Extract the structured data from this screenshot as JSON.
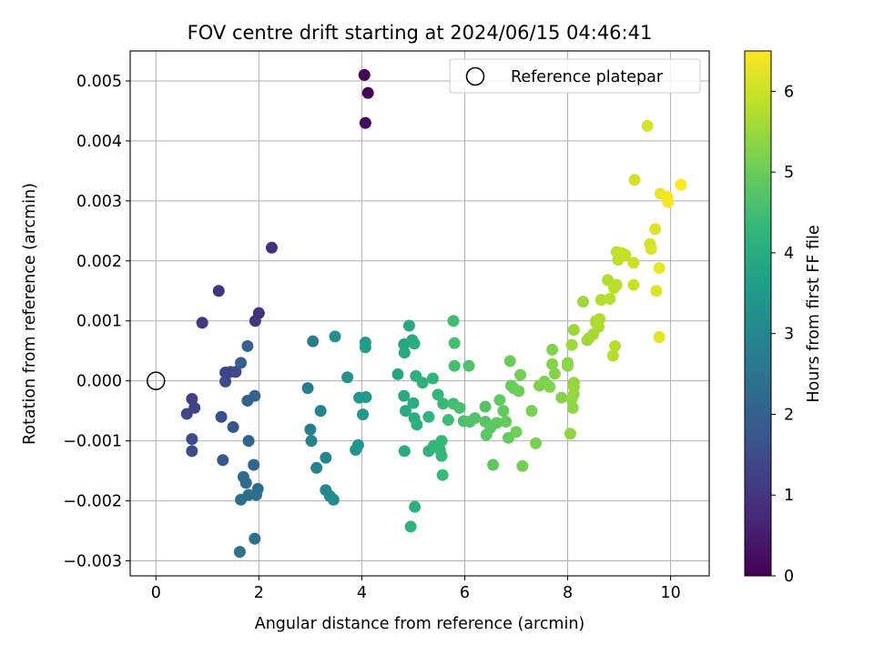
{
  "chart_data": {
    "type": "scatter",
    "title": "FOV centre drift starting at 2024/06/15 04:46:41",
    "xlabel": "Angular distance from reference (arcmin)",
    "ylabel": "Rotation from reference (arcmin)",
    "xlim": [
      -0.5,
      10.75
    ],
    "ylim": [
      -0.00325,
      0.0055
    ],
    "xticks": [
      0,
      2,
      4,
      6,
      8,
      10
    ],
    "xtick_labels": [
      "0",
      "2",
      "4",
      "6",
      "8",
      "10"
    ],
    "yticks": [
      -0.003,
      -0.002,
      -0.001,
      0.0,
      0.001,
      0.002,
      0.003,
      0.004,
      0.005
    ],
    "ytick_labels": [
      "−0.003",
      "−0.002",
      "−0.001",
      "0.000",
      "0.001",
      "0.002",
      "0.003",
      "0.004",
      "0.005"
    ],
    "grid": true,
    "legend": {
      "placement": "top-right",
      "entries": [
        {
          "label": "Reference platepar",
          "marker": "open-circle"
        }
      ]
    },
    "reference": {
      "x": 0,
      "y": 0
    },
    "colorbar": {
      "label": "Hours from first FF file",
      "min": 0,
      "max": 6.5,
      "ticks": [
        0,
        1,
        2,
        3,
        4,
        5,
        6
      ],
      "tick_labels": [
        "0",
        "1",
        "2",
        "3",
        "4",
        "5",
        "6"
      ],
      "colormap": "viridis",
      "colors": [
        "#440154",
        "#482878",
        "#3e4a89",
        "#31688e",
        "#26828e",
        "#1f9e89",
        "#35b779",
        "#6ece58",
        "#b5de2b",
        "#fde725"
      ]
    },
    "points": [
      {
        "x": 4.05,
        "y": 0.0051,
        "t": 0.05
      },
      {
        "x": 4.12,
        "y": 0.0048,
        "t": 0.1
      },
      {
        "x": 4.07,
        "y": 0.0043,
        "t": 0.15
      },
      {
        "x": 2.25,
        "y": 0.00222,
        "t": 0.8
      },
      {
        "x": 1.22,
        "y": 0.0015,
        "t": 0.95
      },
      {
        "x": 0.9,
        "y": 0.00097,
        "t": 1.05
      },
      {
        "x": 2.0,
        "y": 0.00113,
        "t": 0.9
      },
      {
        "x": 1.93,
        "y": 0.001,
        "t": 1.0
      },
      {
        "x": 0.7,
        "y": -0.0003,
        "t": 1.3
      },
      {
        "x": 0.75,
        "y": -0.00045,
        "t": 1.35
      },
      {
        "x": 0.6,
        "y": -0.00055,
        "t": 1.4
      },
      {
        "x": 0.7,
        "y": -0.00097,
        "t": 1.45
      },
      {
        "x": 0.7,
        "y": -0.00117,
        "t": 1.5
      },
      {
        "x": 1.35,
        "y": 0.00014,
        "t": 1.3
      },
      {
        "x": 1.45,
        "y": 0.00015,
        "t": 1.35
      },
      {
        "x": 1.55,
        "y": 0.00015,
        "t": 1.4
      },
      {
        "x": 1.35,
        "y": -1e-05,
        "t": 1.5
      },
      {
        "x": 1.27,
        "y": -0.0006,
        "t": 1.6
      },
      {
        "x": 1.5,
        "y": -0.00077,
        "t": 1.7
      },
      {
        "x": 1.3,
        "y": -0.00132,
        "t": 1.8
      },
      {
        "x": 1.65,
        "y": 0.0003,
        "t": 1.9
      },
      {
        "x": 1.78,
        "y": 0.00058,
        "t": 2.0
      },
      {
        "x": 1.78,
        "y": -0.00033,
        "t": 2.0
      },
      {
        "x": 1.92,
        "y": -0.00025,
        "t": 2.05
      },
      {
        "x": 1.8,
        "y": -0.001,
        "t": 2.1
      },
      {
        "x": 1.9,
        "y": -0.0014,
        "t": 2.15
      },
      {
        "x": 1.7,
        "y": -0.0016,
        "t": 2.2
      },
      {
        "x": 1.75,
        "y": -0.0017,
        "t": 2.25
      },
      {
        "x": 1.98,
        "y": -0.0018,
        "t": 2.3
      },
      {
        "x": 1.95,
        "y": -0.0019,
        "t": 2.3
      },
      {
        "x": 1.8,
        "y": -0.0019,
        "t": 2.35
      },
      {
        "x": 1.65,
        "y": -0.00198,
        "t": 2.4
      },
      {
        "x": 1.92,
        "y": -0.00263,
        "t": 2.4
      },
      {
        "x": 1.63,
        "y": -0.00285,
        "t": 2.5
      },
      {
        "x": 3.05,
        "y": 0.00066,
        "t": 2.7
      },
      {
        "x": 2.95,
        "y": -0.00012,
        "t": 2.8
      },
      {
        "x": 3.0,
        "y": -0.00081,
        "t": 2.8
      },
      {
        "x": 3.02,
        "y": -0.001,
        "t": 2.85
      },
      {
        "x": 3.12,
        "y": -0.00145,
        "t": 2.9
      },
      {
        "x": 3.2,
        "y": -0.0005,
        "t": 2.95
      },
      {
        "x": 3.3,
        "y": -0.00128,
        "t": 3.0
      },
      {
        "x": 3.3,
        "y": -0.00182,
        "t": 3.0
      },
      {
        "x": 3.38,
        "y": -0.00192,
        "t": 3.05
      },
      {
        "x": 3.45,
        "y": -0.00198,
        "t": 3.1
      },
      {
        "x": 3.48,
        "y": 0.00074,
        "t": 3.2
      },
      {
        "x": 3.72,
        "y": 6e-05,
        "t": 3.3
      },
      {
        "x": 3.88,
        "y": -0.00115,
        "t": 3.35
      },
      {
        "x": 3.93,
        "y": -0.00107,
        "t": 3.4
      },
      {
        "x": 3.95,
        "y": -0.00028,
        "t": 3.45
      },
      {
        "x": 4.02,
        "y": -0.00056,
        "t": 3.5
      },
      {
        "x": 4.08,
        "y": -0.00027,
        "t": 3.5
      },
      {
        "x": 4.07,
        "y": 0.00064,
        "t": 3.55
      },
      {
        "x": 4.07,
        "y": 0.00056,
        "t": 3.6
      },
      {
        "x": 4.7,
        "y": 0.00011,
        "t": 3.8
      },
      {
        "x": 4.82,
        "y": 0.00061,
        "t": 3.85
      },
      {
        "x": 4.92,
        "y": 0.00092,
        "t": 3.9
      },
      {
        "x": 4.83,
        "y": 0.00047,
        "t": 3.9
      },
      {
        "x": 4.98,
        "y": 0.00068,
        "t": 3.95
      },
      {
        "x": 5.02,
        "y": 0.00062,
        "t": 4.0
      },
      {
        "x": 4.82,
        "y": -0.00025,
        "t": 3.95
      },
      {
        "x": 4.85,
        "y": -0.0005,
        "t": 4.0
      },
      {
        "x": 4.83,
        "y": -0.00117,
        "t": 4.0
      },
      {
        "x": 5.0,
        "y": -0.00037,
        "t": 4.05
      },
      {
        "x": 5.02,
        "y": -0.00062,
        "t": 4.05
      },
      {
        "x": 5.07,
        "y": -0.00073,
        "t": 4.1
      },
      {
        "x": 5.03,
        "y": -0.0021,
        "t": 4.1
      },
      {
        "x": 4.95,
        "y": -0.00243,
        "t": 4.15
      },
      {
        "x": 5.05,
        "y": 8e-05,
        "t": 4.1
      },
      {
        "x": 5.18,
        "y": -3e-05,
        "t": 4.15
      },
      {
        "x": 5.3,
        "y": -0.0006,
        "t": 4.2
      },
      {
        "x": 5.3,
        "y": -0.00117,
        "t": 4.2
      },
      {
        "x": 5.4,
        "y": -0.00108,
        "t": 4.25
      },
      {
        "x": 5.38,
        "y": 4e-05,
        "t": 4.25
      },
      {
        "x": 5.48,
        "y": -0.00023,
        "t": 4.3
      },
      {
        "x": 5.52,
        "y": -0.00115,
        "t": 4.3
      },
      {
        "x": 5.55,
        "y": -0.00125,
        "t": 4.35
      },
      {
        "x": 5.55,
        "y": -0.001,
        "t": 4.35
      },
      {
        "x": 5.57,
        "y": -0.00157,
        "t": 4.4
      },
      {
        "x": 5.58,
        "y": -0.00038,
        "t": 4.4
      },
      {
        "x": 5.68,
        "y": -0.00065,
        "t": 4.45
      },
      {
        "x": 5.78,
        "y": -0.00038,
        "t": 4.5
      },
      {
        "x": 5.78,
        "y": 0.001,
        "t": 4.5
      },
      {
        "x": 5.8,
        "y": 0.00063,
        "t": 4.55
      },
      {
        "x": 5.8,
        "y": 0.00025,
        "t": 4.55
      },
      {
        "x": 5.9,
        "y": -0.00045,
        "t": 4.6
      },
      {
        "x": 5.98,
        "y": -0.00067,
        "t": 4.6
      },
      {
        "x": 6.08,
        "y": 0.00025,
        "t": 4.65
      },
      {
        "x": 6.1,
        "y": -0.00068,
        "t": 4.65
      },
      {
        "x": 6.2,
        "y": -0.00062,
        "t": 4.7
      },
      {
        "x": 6.4,
        "y": -0.00043,
        "t": 4.75
      },
      {
        "x": 6.4,
        "y": -0.00068,
        "t": 4.75
      },
      {
        "x": 6.42,
        "y": -0.0009,
        "t": 4.8
      },
      {
        "x": 6.5,
        "y": -0.00078,
        "t": 4.8
      },
      {
        "x": 6.55,
        "y": -0.0014,
        "t": 4.85
      },
      {
        "x": 6.62,
        "y": -0.0007,
        "t": 4.85
      },
      {
        "x": 6.68,
        "y": -0.00032,
        "t": 4.9
      },
      {
        "x": 6.75,
        "y": -0.0005,
        "t": 4.9
      },
      {
        "x": 6.8,
        "y": -0.00068,
        "t": 4.95
      },
      {
        "x": 6.85,
        "y": -0.00095,
        "t": 4.95
      },
      {
        "x": 6.88,
        "y": 0.00033,
        "t": 5.0
      },
      {
        "x": 6.9,
        "y": -8e-05,
        "t": 5.0
      },
      {
        "x": 6.95,
        "y": -0.00012,
        "t": 5.0
      },
      {
        "x": 7.0,
        "y": -0.00085,
        "t": 5.05
      },
      {
        "x": 7.05,
        "y": -0.00017,
        "t": 5.05
      },
      {
        "x": 7.08,
        "y": 0.0001,
        "t": 5.1
      },
      {
        "x": 7.12,
        "y": -0.00142,
        "t": 5.1
      },
      {
        "x": 7.3,
        "y": -0.0005,
        "t": 5.15
      },
      {
        "x": 7.38,
        "y": -0.00104,
        "t": 5.15
      },
      {
        "x": 7.45,
        "y": -8e-05,
        "t": 5.2
      },
      {
        "x": 7.55,
        "y": -1e-05,
        "t": 5.2
      },
      {
        "x": 7.65,
        "y": -0.0001,
        "t": 5.25
      },
      {
        "x": 7.7,
        "y": 0.00052,
        "t": 5.25
      },
      {
        "x": 7.7,
        "y": 0.00028,
        "t": 5.3
      },
      {
        "x": 7.75,
        "y": 0.00012,
        "t": 5.3
      },
      {
        "x": 7.88,
        "y": -0.00028,
        "t": 5.3
      },
      {
        "x": 8.0,
        "y": 0.00025,
        "t": 5.35
      },
      {
        "x": 8.0,
        "y": 0.0003,
        "t": 5.35
      },
      {
        "x": 8.05,
        "y": -0.00088,
        "t": 5.4
      },
      {
        "x": 8.08,
        "y": -0.0003,
        "t": 5.4
      },
      {
        "x": 8.1,
        "y": -0.00045,
        "t": 5.4
      },
      {
        "x": 8.12,
        "y": -0.00022,
        "t": 5.45
      },
      {
        "x": 8.12,
        "y": -0.0001,
        "t": 5.45
      },
      {
        "x": 8.12,
        "y": -3e-05,
        "t": 5.45
      },
      {
        "x": 8.08,
        "y": 0.0006,
        "t": 5.5
      },
      {
        "x": 8.12,
        "y": 0.00085,
        "t": 5.5
      },
      {
        "x": 8.3,
        "y": 0.00132,
        "t": 5.55
      },
      {
        "x": 8.38,
        "y": 0.00068,
        "t": 5.55
      },
      {
        "x": 8.42,
        "y": 0.00072,
        "t": 5.6
      },
      {
        "x": 8.5,
        "y": 0.00078,
        "t": 5.6
      },
      {
        "x": 8.55,
        "y": 0.001,
        "t": 5.65
      },
      {
        "x": 8.55,
        "y": 0.00097,
        "t": 5.65
      },
      {
        "x": 8.6,
        "y": 0.0009,
        "t": 5.7
      },
      {
        "x": 8.62,
        "y": 0.00103,
        "t": 5.7
      },
      {
        "x": 8.65,
        "y": 0.00135,
        "t": 5.75
      },
      {
        "x": 8.78,
        "y": 0.00168,
        "t": 5.75
      },
      {
        "x": 8.82,
        "y": 0.00137,
        "t": 5.8
      },
      {
        "x": 8.88,
        "y": 0.00042,
        "t": 5.8
      },
      {
        "x": 8.92,
        "y": 0.00058,
        "t": 5.8
      },
      {
        "x": 8.9,
        "y": 0.00155,
        "t": 5.85
      },
      {
        "x": 8.95,
        "y": 0.0016,
        "t": 5.85
      },
      {
        "x": 8.95,
        "y": 0.00215,
        "t": 5.9
      },
      {
        "x": 8.98,
        "y": 0.00202,
        "t": 5.9
      },
      {
        "x": 9.05,
        "y": 0.00213,
        "t": 5.95
      },
      {
        "x": 9.12,
        "y": 0.0021,
        "t": 5.95
      },
      {
        "x": 9.28,
        "y": 0.00197,
        "t": 6.0
      },
      {
        "x": 9.28,
        "y": 0.0016,
        "t": 6.0
      },
      {
        "x": 9.3,
        "y": 0.00335,
        "t": 6.05
      },
      {
        "x": 9.55,
        "y": 0.00425,
        "t": 6.1
      },
      {
        "x": 9.6,
        "y": 0.00228,
        "t": 6.1
      },
      {
        "x": 9.62,
        "y": 0.0022,
        "t": 6.15
      },
      {
        "x": 9.7,
        "y": 0.00253,
        "t": 6.2
      },
      {
        "x": 9.72,
        "y": 0.0015,
        "t": 6.2
      },
      {
        "x": 9.78,
        "y": 0.00073,
        "t": 6.25
      },
      {
        "x": 9.78,
        "y": 0.00188,
        "t": 6.3
      },
      {
        "x": 9.8,
        "y": 0.00312,
        "t": 6.35
      },
      {
        "x": 9.93,
        "y": 0.00307,
        "t": 6.4
      },
      {
        "x": 9.95,
        "y": 0.00298,
        "t": 6.45
      },
      {
        "x": 10.2,
        "y": 0.00327,
        "t": 6.5
      }
    ]
  }
}
